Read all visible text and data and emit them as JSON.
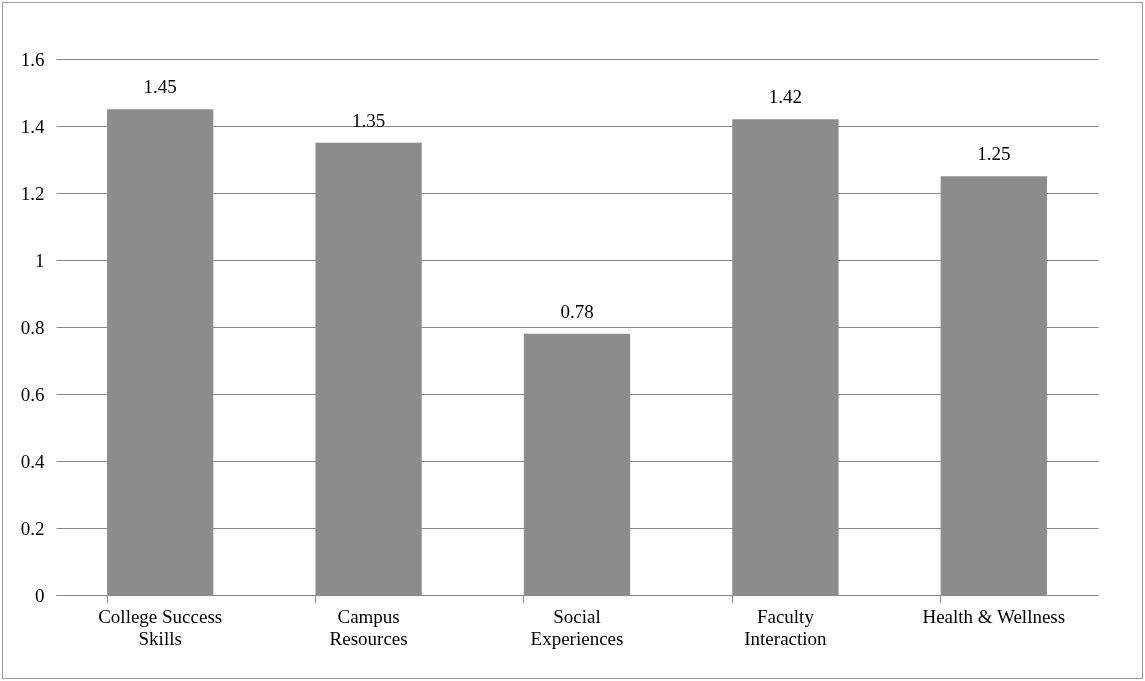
{
  "chart_data": {
    "type": "bar",
    "categories": [
      "College Success\nSkills",
      "Campus\nResources",
      "Social\nExperiences",
      "Faculty\nInteraction",
      "Health & Wellness"
    ],
    "values": [
      1.45,
      1.35,
      0.78,
      1.42,
      1.25
    ],
    "color": "#8c8c8c",
    "ylim": [
      0,
      1.6
    ],
    "yticks": [
      0,
      0.2,
      0.4,
      0.6,
      0.8,
      1,
      1.2,
      1.4,
      1.6
    ],
    "grid": "y",
    "data_labels": true
  }
}
